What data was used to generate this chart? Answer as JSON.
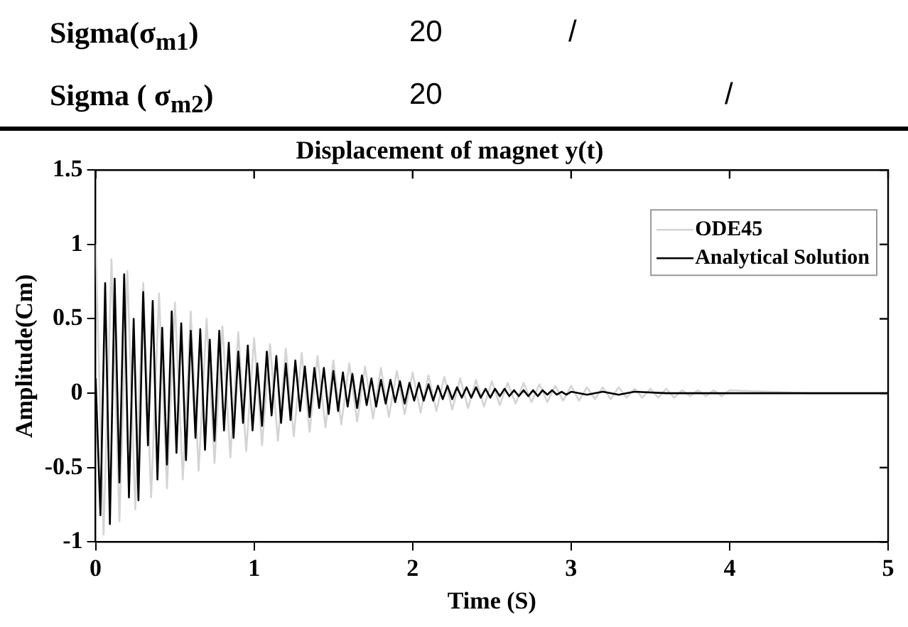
{
  "chart_data": [
    {
      "type": "other",
      "annotations": [
        "Sigma(σ$_{m1}$)",
        "20",
        "/",
        "Sigma ( σ$_{m2}$)",
        "20",
        "/"
      ]
    },
    {
      "type": "line",
      "title": "Displacement of magnet y(t)",
      "xlabel": "Time (S)",
      "ylabel": "Amplitude(Cm)",
      "xlim": [
        0,
        5
      ],
      "xticks": [
        0,
        1,
        2,
        3,
        4,
        5
      ],
      "ylim": [
        -1,
        1.5
      ],
      "yticks": [
        -1,
        -0.5,
        0,
        0.5,
        1,
        1.5
      ],
      "grid": false,
      "legend": "top right",
      "marker": "none",
      "line_style": "solid",
      "series": [
        {
          "name": "ODE45",
          "color": "#d4d4d4",
          "x": [
            0,
            0.05,
            0.1,
            0.15,
            0.2,
            0.25,
            0.3,
            0.35,
            0.4,
            0.45,
            0.5,
            0.55,
            0.6,
            0.65,
            0.7,
            0.75,
            0.8,
            0.85,
            0.9,
            0.95,
            1,
            1.05,
            1.1,
            1.15,
            1.2,
            1.25,
            1.3,
            1.35,
            1.4,
            1.45,
            1.5,
            1.55,
            1.6,
            1.65,
            1.7,
            1.75,
            1.8,
            1.85,
            1.9,
            1.95,
            2,
            2.05,
            2.1,
            2.15,
            2.2,
            2.25,
            2.3,
            2.35,
            2.4,
            2.45,
            2.5,
            2.55,
            2.6,
            2.65,
            2.7,
            2.75,
            2.8,
            2.85,
            2.9,
            2.95,
            3,
            3.05,
            3.1,
            3.15,
            3.2,
            3.25,
            3.3,
            3.35,
            3.4,
            3.45,
            3.5,
            3.55,
            3.6,
            3.65,
            3.7,
            3.75,
            3.8,
            3.85,
            3.9,
            3.95,
            4,
            4.25,
            4.5,
            4.75,
            5
          ],
          "values": [
            1,
            -0.95,
            0.9,
            -0.86,
            0.82,
            -0.78,
            0.74,
            -0.7,
            0.67,
            -0.64,
            0.61,
            -0.58,
            0.55,
            -0.52,
            0.5,
            -0.47,
            0.45,
            -0.43,
            0.41,
            -0.39,
            0.37,
            -0.35,
            0.33,
            -0.32,
            0.3,
            -0.29,
            0.27,
            -0.26,
            0.25,
            -0.23,
            0.22,
            -0.21,
            0.2,
            -0.19,
            0.18,
            -0.17,
            0.17,
            -0.16,
            0.15,
            -0.14,
            0.14,
            -0.13,
            0.12,
            -0.12,
            0.11,
            -0.11,
            0.1,
            -0.1,
            0.09,
            -0.09,
            0.08,
            -0.08,
            0.07,
            -0.07,
            0.07,
            -0.06,
            0.06,
            -0.06,
            0.05,
            -0.05,
            0.05,
            -0.05,
            0.04,
            -0.04,
            0.04,
            -0.04,
            0.04,
            -0.03,
            0.03,
            -0.03,
            0.03,
            -0.03,
            0.03,
            -0.03,
            0.02,
            -0.02,
            0.02,
            -0.02,
            0.02,
            -0.02,
            0.02,
            0.01,
            0,
            0,
            0
          ]
        },
        {
          "name": "Analytical Solution",
          "color": "#000000",
          "x": [
            0,
            0.03,
            0.06,
            0.09,
            0.12,
            0.15,
            0.18,
            0.21,
            0.24,
            0.27,
            0.3,
            0.33,
            0.36,
            0.39,
            0.42,
            0.45,
            0.48,
            0.51,
            0.54,
            0.57,
            0.6,
            0.63,
            0.66,
            0.69,
            0.72,
            0.75,
            0.78,
            0.81,
            0.84,
            0.87,
            0.9,
            0.93,
            0.96,
            0.99,
            1.02,
            1.05,
            1.08,
            1.11,
            1.14,
            1.17,
            1.2,
            1.23,
            1.26,
            1.29,
            1.32,
            1.35,
            1.38,
            1.41,
            1.44,
            1.47,
            1.5,
            1.53,
            1.56,
            1.59,
            1.62,
            1.65,
            1.68,
            1.71,
            1.74,
            1.77,
            1.8,
            1.83,
            1.86,
            1.89,
            1.92,
            1.95,
            1.98,
            2.01,
            2.04,
            2.07,
            2.1,
            2.13,
            2.16,
            2.19,
            2.22,
            2.25,
            2.28,
            2.31,
            2.34,
            2.37,
            2.4,
            2.43,
            2.46,
            2.49,
            2.52,
            2.55,
            2.58,
            2.61,
            2.64,
            2.67,
            2.7,
            2.73,
            2.76,
            2.79,
            2.82,
            2.85,
            2.88,
            2.91,
            2.94,
            2.97,
            3,
            3.1,
            3.2,
            3.3,
            3.4,
            3.6,
            4,
            4.5,
            5
          ],
          "values": [
            0.1,
            -0.82,
            0.74,
            -0.88,
            0.77,
            -0.6,
            0.8,
            -0.7,
            0.5,
            -0.72,
            0.68,
            -0.35,
            0.62,
            -0.58,
            0.44,
            -0.48,
            0.55,
            -0.4,
            0.47,
            -0.45,
            0.42,
            -0.3,
            0.43,
            -0.38,
            0.36,
            -0.32,
            0.42,
            -0.25,
            0.34,
            -0.3,
            0.28,
            -0.2,
            0.32,
            -0.25,
            0.2,
            -0.22,
            0.28,
            -0.15,
            0.25,
            -0.2,
            0.2,
            -0.18,
            0.22,
            -0.12,
            0.18,
            -0.16,
            0.17,
            -0.1,
            0.17,
            -0.14,
            0.15,
            -0.12,
            0.14,
            -0.09,
            0.13,
            -0.1,
            0.12,
            -0.08,
            0.1,
            -0.09,
            0.09,
            -0.07,
            0.09,
            -0.06,
            0.08,
            -0.07,
            0.07,
            -0.05,
            0.07,
            -0.05,
            0.06,
            -0.05,
            0.05,
            -0.04,
            0.05,
            -0.04,
            0.04,
            -0.03,
            0.04,
            -0.03,
            0.04,
            -0.03,
            0.03,
            -0.03,
            0.03,
            -0.02,
            0.03,
            -0.02,
            0.02,
            -0.02,
            0.02,
            -0.02,
            0.02,
            -0.02,
            0.02,
            -0.01,
            0.02,
            -0.01,
            0.01,
            -0.01,
            0.01,
            -0.01,
            0.01,
            -0.01,
            0.01,
            0,
            0,
            0,
            0
          ]
        }
      ]
    }
  ]
}
